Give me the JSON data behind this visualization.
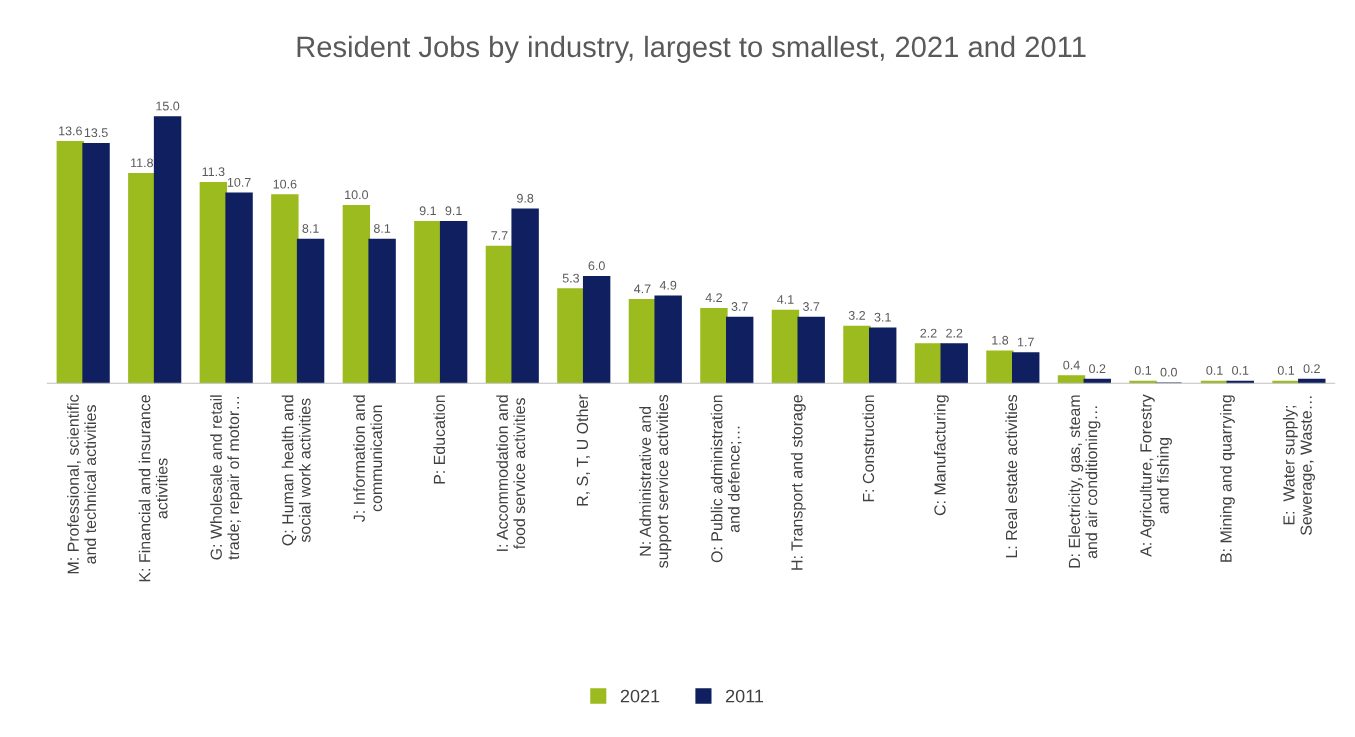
{
  "chart_data": {
    "type": "bar",
    "title": "Resident Jobs by industry, largest to smallest, 2021 and 2011",
    "categories": [
      "M: Professional, scientific\nand technical activities",
      "K: Financial and insurance\nactivities",
      "G: Wholesale and retail\ntrade; repair of motor…",
      "Q: Human health and\nsocial work activities",
      "J: Information and\ncommunication",
      "P: Education",
      "I: Accommodation and\nfood service activities",
      "R, S, T, U Other",
      "N: Administrative and\nsupport service activities",
      "O: Public administration\nand defence;…",
      "H: Transport and storage",
      "F: Construction",
      "C: Manufacturing",
      "L: Real estate activities",
      "D: Electricity, gas, steam\nand air conditioning…",
      "A: Agriculture, Forestry\nand fishing",
      "B: Mining and quarrying",
      "E:  Water supply;\nSewerage, Waste…"
    ],
    "series": [
      {
        "name": "2021",
        "color": "#9bbb1f",
        "values": [
          13.6,
          11.8,
          11.3,
          10.6,
          10.0,
          9.1,
          7.7,
          5.3,
          4.7,
          4.2,
          4.1,
          3.2,
          2.2,
          1.8,
          0.4,
          0.1,
          0.1,
          0.1
        ],
        "value_labels": [
          "13.6",
          "11.8",
          "11.3",
          "10.6",
          "10.0",
          "9.1",
          "7.7",
          "5.3",
          "4.7",
          "4.2",
          "4.1",
          "3.2",
          "2.2",
          "1.8",
          "0.4",
          "0.1",
          "0.1",
          "0.1"
        ]
      },
      {
        "name": "2011",
        "color": "#0f1f5f",
        "values": [
          13.5,
          15.0,
          10.7,
          8.1,
          8.1,
          9.1,
          9.8,
          6.0,
          4.9,
          3.7,
          3.7,
          3.1,
          2.2,
          1.7,
          0.2,
          0.0,
          0.1,
          0.2
        ],
        "value_labels": [
          "13.5",
          "15.0",
          "10.7",
          "8.1",
          "8.1",
          "9.1",
          "9.8",
          "6.0",
          "4.9",
          "3.7",
          "3.7",
          "3.1",
          "2.2",
          "1.7",
          "0.2",
          "0.0",
          "0.1",
          "0.2"
        ]
      }
    ],
    "legend": "bottom",
    "grid": false
  }
}
